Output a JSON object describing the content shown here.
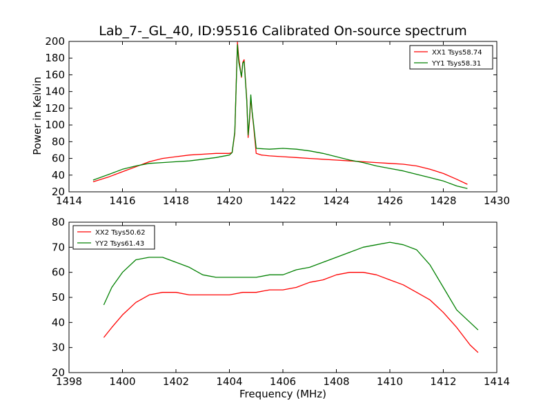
{
  "chart_data": [
    {
      "type": "line",
      "title": "Lab_7-_GL_40, ID:95516 Calibrated On-source spectrum",
      "xlabel": "",
      "ylabel": "Power in Kelvin",
      "xlim": [
        1414,
        1430
      ],
      "ylim": [
        20,
        200
      ],
      "xticks": [
        "1414",
        "1416",
        "1418",
        "1420",
        "1422",
        "1424",
        "1426",
        "1428",
        "1430"
      ],
      "yticks": [
        "20",
        "40",
        "60",
        "80",
        "100",
        "120",
        "140",
        "160",
        "180",
        "200"
      ],
      "legend_position": "top-right",
      "grid": false,
      "series": [
        {
          "name": "XX1 Tsys58.74",
          "color": "#ff0000",
          "x": [
            1414.9,
            1415.5,
            1416,
            1416.5,
            1417,
            1417.5,
            1418,
            1418.5,
            1419,
            1419.5,
            1420,
            1420.1,
            1420.2,
            1420.3,
            1420.35,
            1420.45,
            1420.5,
            1420.55,
            1420.65,
            1420.7,
            1420.75,
            1420.8,
            1420.85,
            1420.9,
            1421,
            1421.2,
            1421.5,
            1422,
            1422.5,
            1423,
            1423.5,
            1424,
            1424.5,
            1425,
            1425.5,
            1426,
            1426.5,
            1427,
            1427.5,
            1428,
            1428.5,
            1428.9
          ],
          "values": [
            32,
            38,
            44,
            50,
            56,
            60,
            62,
            64,
            65,
            66,
            66,
            67,
            90,
            199,
            180,
            157,
            175,
            178,
            130,
            85,
            105,
            133,
            115,
            100,
            66,
            64,
            63,
            62,
            61,
            60,
            59,
            58,
            57,
            56,
            55,
            54,
            53,
            51,
            47,
            42,
            35,
            29
          ]
        },
        {
          "name": "YY1 Tsys58.31",
          "color": "#008000",
          "x": [
            1414.9,
            1415.5,
            1416,
            1416.5,
            1417,
            1417.5,
            1418,
            1418.5,
            1419,
            1419.5,
            1420,
            1420.1,
            1420.2,
            1420.3,
            1420.35,
            1420.45,
            1420.5,
            1420.55,
            1420.65,
            1420.7,
            1420.75,
            1420.8,
            1420.85,
            1420.9,
            1421,
            1421.5,
            1422,
            1422.5,
            1423,
            1423.5,
            1424,
            1424.5,
            1425,
            1425.5,
            1426,
            1426.5,
            1427,
            1427.5,
            1428,
            1428.5,
            1428.9
          ],
          "values": [
            34,
            41,
            47,
            51,
            54,
            55,
            56,
            57,
            59,
            61,
            64,
            67,
            92,
            196,
            175,
            158,
            174,
            176,
            128,
            88,
            108,
            136,
            116,
            102,
            72,
            71,
            72,
            71,
            69,
            66,
            62,
            58,
            55,
            51,
            48,
            45,
            41,
            37,
            33,
            27,
            24
          ]
        }
      ]
    },
    {
      "type": "line",
      "title": "",
      "xlabel": "Frequency (MHz)",
      "ylabel": "",
      "xlim": [
        1398,
        1414
      ],
      "ylim": [
        20,
        80
      ],
      "xticks": [
        "1398",
        "1400",
        "1402",
        "1404",
        "1406",
        "1408",
        "1410",
        "1412",
        "1414"
      ],
      "yticks": [
        "20",
        "30",
        "40",
        "50",
        "60",
        "70",
        "80"
      ],
      "legend_position": "top-left",
      "grid": false,
      "series": [
        {
          "name": "XX2 Tsys50.62",
          "color": "#ff0000",
          "x": [
            1399.3,
            1399.6,
            1400,
            1400.5,
            1401,
            1401.5,
            1402,
            1402.5,
            1403,
            1403.5,
            1404,
            1404.5,
            1405,
            1405.5,
            1406,
            1406.5,
            1407,
            1407.5,
            1408,
            1408.5,
            1409,
            1409.5,
            1410,
            1410.5,
            1411,
            1411.5,
            1412,
            1412.5,
            1413,
            1413.3
          ],
          "values": [
            34,
            38,
            43,
            48,
            51,
            52,
            52,
            51,
            51,
            51,
            51,
            52,
            52,
            53,
            53,
            54,
            56,
            57,
            59,
            60,
            60,
            59,
            57,
            55,
            52,
            49,
            44,
            38,
            31,
            28
          ]
        },
        {
          "name": "YY2 Tsys61.43",
          "color": "#008000",
          "x": [
            1399.3,
            1399.6,
            1400,
            1400.5,
            1401,
            1401.5,
            1402,
            1402.5,
            1403,
            1403.5,
            1404,
            1404.5,
            1405,
            1405.5,
            1406,
            1406.5,
            1407,
            1407.5,
            1408,
            1408.5,
            1409,
            1409.5,
            1410,
            1410.5,
            1411,
            1411.5,
            1412,
            1412.5,
            1413,
            1413.3
          ],
          "values": [
            47,
            54,
            60,
            65,
            66,
            66,
            64,
            62,
            59,
            58,
            58,
            58,
            58,
            59,
            59,
            61,
            62,
            64,
            66,
            68,
            70,
            71,
            72,
            71,
            69,
            63,
            54,
            45,
            40,
            37
          ]
        }
      ]
    }
  ]
}
